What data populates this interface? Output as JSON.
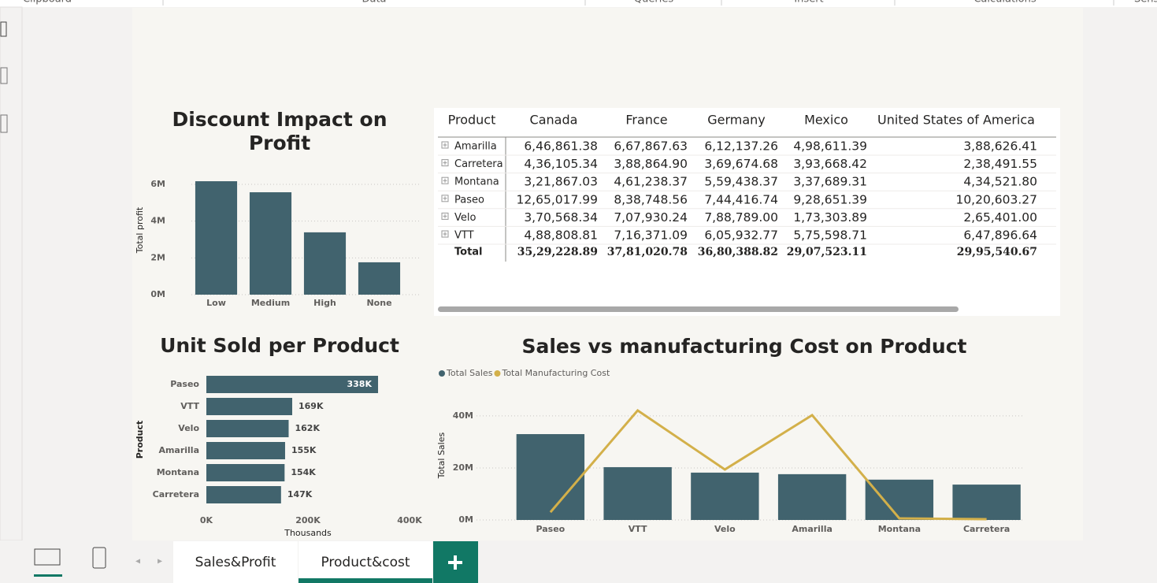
{
  "ribbon": {
    "groups": [
      "Clipboard",
      "Data",
      "Queries",
      "Insert",
      "Calculations",
      "Sensi"
    ]
  },
  "chart_data": [
    {
      "type": "bar",
      "title": "Discount Impact on Profit",
      "categories": [
        "Low",
        "Medium",
        "High",
        "None"
      ],
      "values": [
        6170000,
        5570000,
        3390000,
        1760000
      ],
      "color": "#41636e",
      "ylim": [
        0,
        6300000
      ],
      "yticks": [
        {
          "value": 0,
          "label": "0M"
        },
        {
          "value": 2000000,
          "label": "2M"
        },
        {
          "value": 4000000,
          "label": "4M"
        },
        {
          "value": 6000000,
          "label": "6M"
        }
      ],
      "ylabel": "Total profit",
      "grid": true
    },
    {
      "type": "bar",
      "orientation": "horizontal",
      "title": "Unit Sold per Product",
      "categories": [
        "Paseo",
        "VTT",
        "Velo",
        "Amarilla",
        "Montana",
        "Carretera"
      ],
      "values": [
        338000,
        169000,
        162000,
        155000,
        154000,
        147000
      ],
      "value_labels": [
        "338K",
        "169K",
        "162K",
        "155K",
        "154K",
        "147K"
      ],
      "color": "#41636e",
      "xlim": [
        0,
        400000
      ],
      "xticks": [
        {
          "value": 0,
          "label": "0K"
        },
        {
          "value": 200000,
          "label": "200K"
        },
        {
          "value": 400000,
          "label": "400K"
        }
      ],
      "xlabel": "Thousands",
      "ylabel": "Product"
    },
    {
      "type": "combo",
      "title": "Sales vs manufacturing Cost on Product",
      "categories": [
        "Paseo",
        "VTT",
        "Velo",
        "Amarilla",
        "Montana",
        "Carretera"
      ],
      "series": [
        {
          "name": "Total Sales",
          "type": "bar",
          "color": "#41636e",
          "values": [
            33000000,
            20300000,
            18200000,
            17600000,
            15500000,
            13600000
          ]
        },
        {
          "name": "Total Manufacturing Cost",
          "type": "line",
          "color": "#d3b04a",
          "values": [
            3000000,
            42100000,
            19400000,
            40300000,
            600000,
            300000
          ]
        }
      ],
      "ylim": [
        0,
        43000000
      ],
      "yticks": [
        {
          "value": 0,
          "label": "0M"
        },
        {
          "value": 20000000,
          "label": "20M"
        },
        {
          "value": 40000000,
          "label": "40M"
        }
      ],
      "ylabel": "Total Sales",
      "grid": true,
      "legend": "top-left"
    }
  ],
  "table": {
    "columns": [
      "Product",
      "Canada",
      "France",
      "Germany",
      "Mexico",
      "United States of America"
    ],
    "rows": [
      [
        "Amarilla",
        "6,46,861.38",
        "6,67,867.63",
        "6,12,137.26",
        "4,98,611.39",
        "3,88,626.41"
      ],
      [
        "Carretera",
        "4,36,105.34",
        "3,88,864.90",
        "3,69,674.68",
        "3,93,668.42",
        "2,38,491.55"
      ],
      [
        "Montana",
        "3,21,867.03",
        "4,61,238.37",
        "5,59,438.37",
        "3,37,689.31",
        "4,34,521.80"
      ],
      [
        "Paseo",
        "12,65,017.99",
        "8,38,748.56",
        "7,44,416.74",
        "9,28,651.39",
        "10,20,603.27"
      ],
      [
        "Velo",
        "3,70,568.34",
        "7,07,930.24",
        "7,88,789.00",
        "1,73,303.89",
        "2,65,401.00"
      ],
      [
        "VTT",
        "4,88,808.81",
        "7,16,371.09",
        "6,05,932.77",
        "5,75,598.71",
        "6,47,896.64"
      ]
    ],
    "total": [
      "Total",
      "35,29,228.89",
      "37,81,020.78",
      "36,80,388.82",
      "29,07,523.11",
      "29,95,540.67"
    ]
  },
  "tabs": [
    "Sales&Profit",
    "Product&cost"
  ]
}
